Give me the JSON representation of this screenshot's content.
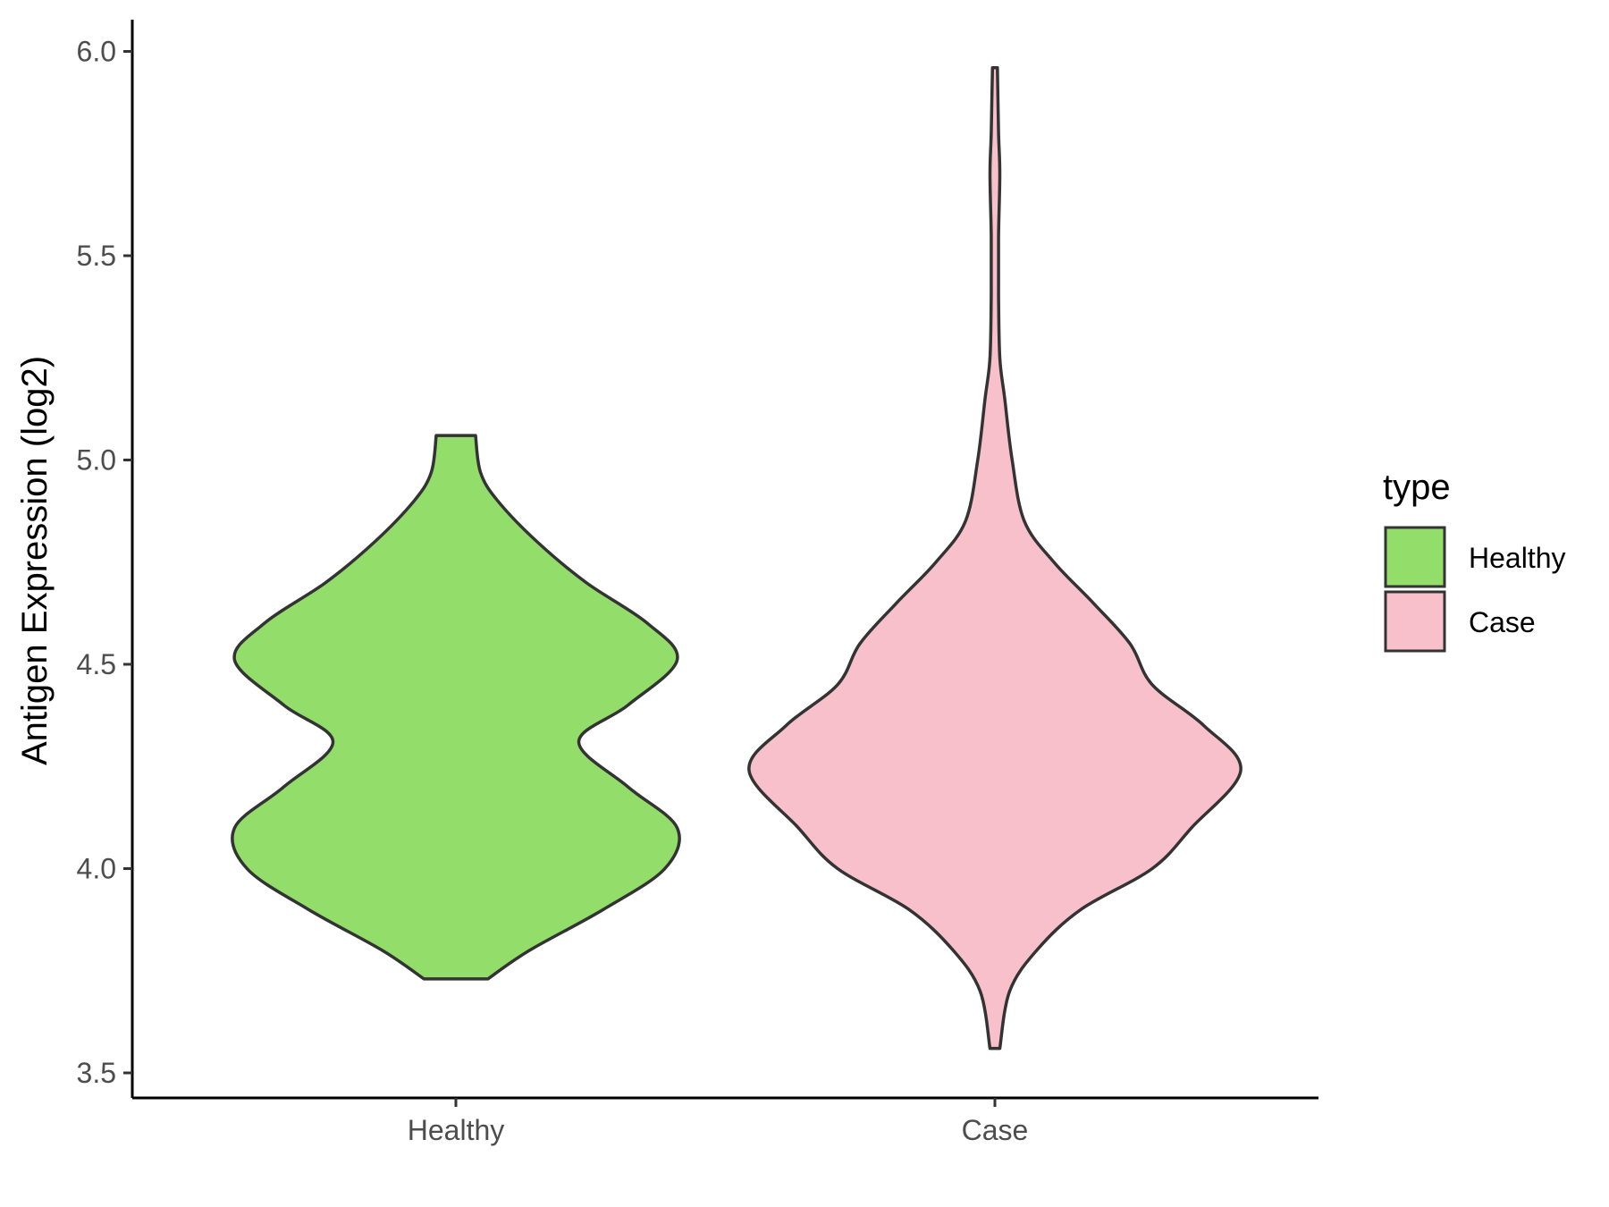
{
  "chart_data": {
    "type": "violin",
    "title": "",
    "xlabel": "",
    "ylabel": "Antigen Expression (log2)",
    "ylim": [
      3.45,
      6.08
    ],
    "y_ticks": [
      "3.5",
      "4.0",
      "4.5",
      "5.0",
      "5.5",
      "6.0"
    ],
    "categories": [
      "Healthy",
      "Case"
    ],
    "grid": false,
    "legend": {
      "title": "type",
      "placement": "right",
      "entries": [
        {
          "label": "Healthy",
          "color": "#93dd6b"
        },
        {
          "label": "Case",
          "color": "#f8c0cb"
        }
      ]
    },
    "series": [
      {
        "name": "Healthy",
        "color": "#93dd6b",
        "min": 3.73,
        "max": 5.06,
        "density_profile": [
          [
            3.73,
            0.13
          ],
          [
            3.8,
            0.3
          ],
          [
            3.9,
            0.6
          ],
          [
            4.0,
            0.85
          ],
          [
            4.1,
            0.9
          ],
          [
            4.2,
            0.7
          ],
          [
            4.31,
            0.5
          ],
          [
            4.4,
            0.7
          ],
          [
            4.51,
            0.9
          ],
          [
            4.6,
            0.78
          ],
          [
            4.7,
            0.53
          ],
          [
            4.8,
            0.33
          ],
          [
            4.9,
            0.17
          ],
          [
            4.97,
            0.1
          ],
          [
            5.06,
            0.08
          ]
        ]
      },
      {
        "name": "Case",
        "color": "#f8c0cb",
        "min": 3.56,
        "max": 5.96,
        "density_profile": [
          [
            3.56,
            0.02
          ],
          [
            3.7,
            0.06
          ],
          [
            3.8,
            0.17
          ],
          [
            3.9,
            0.35
          ],
          [
            4.0,
            0.64
          ],
          [
            4.1,
            0.8
          ],
          [
            4.24,
            1.0
          ],
          [
            4.35,
            0.85
          ],
          [
            4.45,
            0.64
          ],
          [
            4.55,
            0.55
          ],
          [
            4.65,
            0.4
          ],
          [
            4.75,
            0.24
          ],
          [
            4.85,
            0.12
          ],
          [
            5.0,
            0.07
          ],
          [
            5.15,
            0.04
          ],
          [
            5.25,
            0.02
          ],
          [
            5.4,
            0.015
          ],
          [
            5.55,
            0.015
          ],
          [
            5.7,
            0.02
          ],
          [
            5.8,
            0.015
          ],
          [
            5.96,
            0.01
          ]
        ]
      }
    ]
  }
}
